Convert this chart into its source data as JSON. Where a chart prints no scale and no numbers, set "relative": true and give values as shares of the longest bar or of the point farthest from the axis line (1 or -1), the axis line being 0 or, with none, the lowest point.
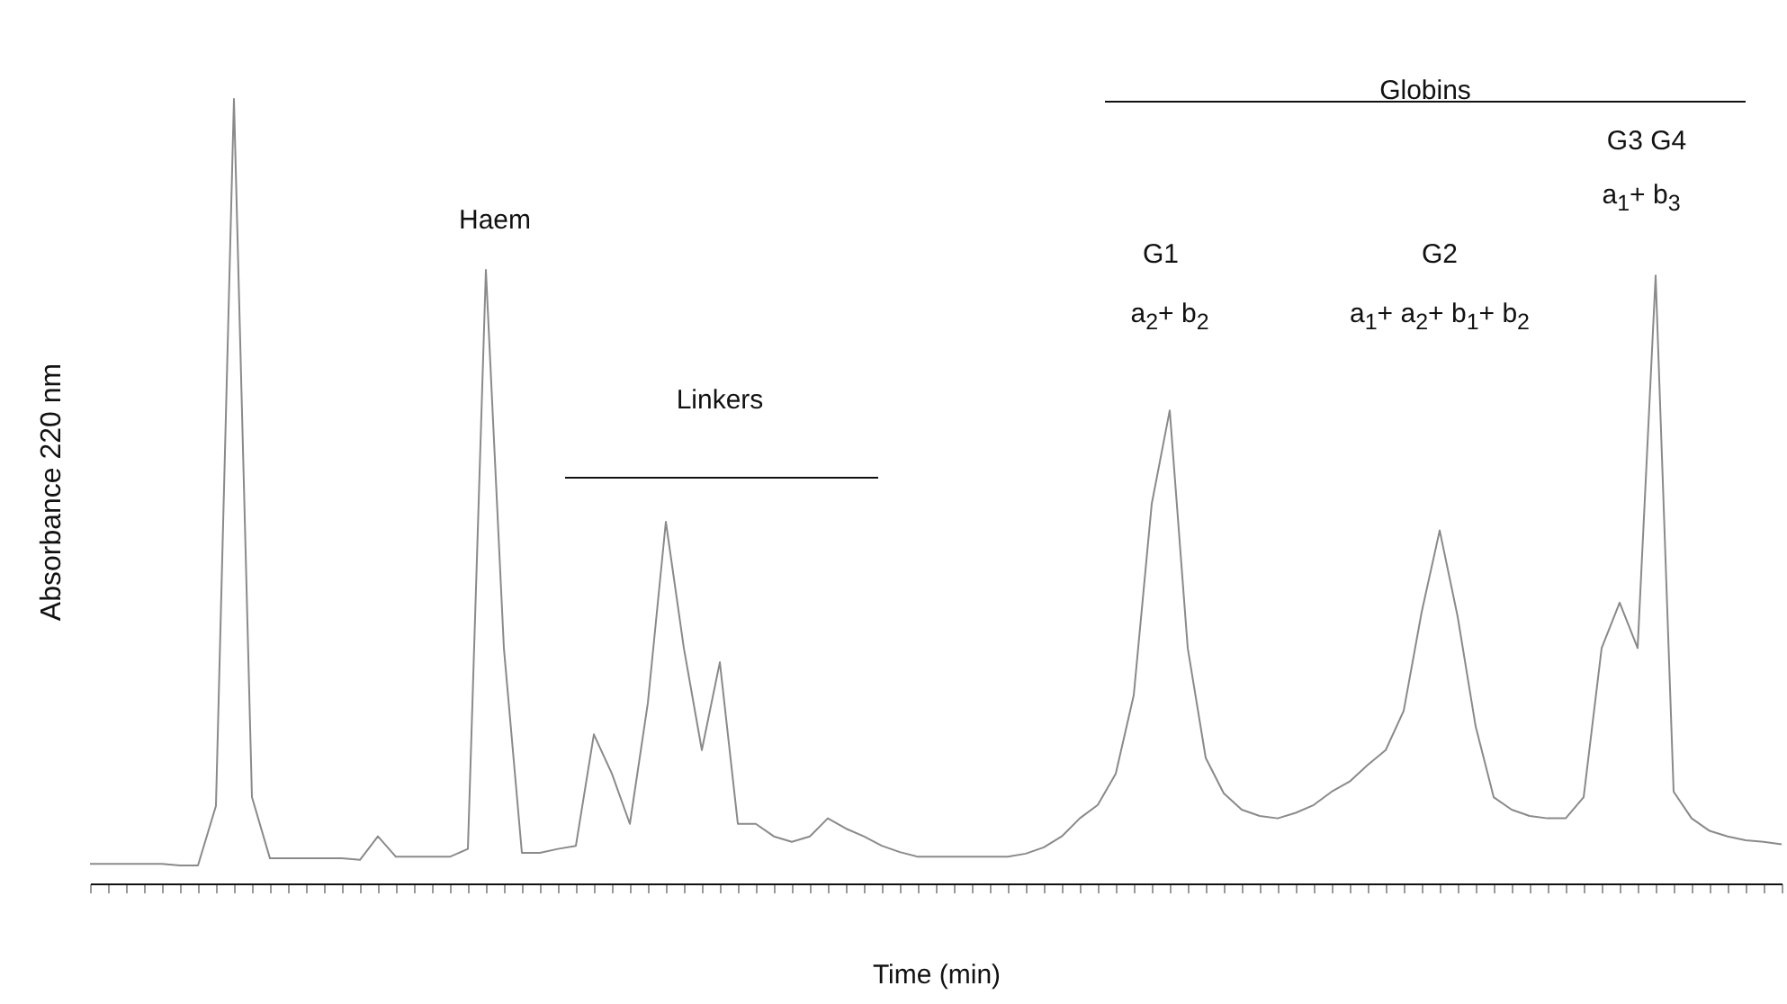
{
  "chart_data": {
    "type": "line",
    "relative": true,
    "xlabel": "Time (min)",
    "ylabel": "Absorbance 220 nm",
    "annotations": [
      "Haem",
      "Linkers",
      "Globins",
      "G1",
      "a$_{2}$+ b$_{2}$",
      "G2",
      "a$_{1}$+ a$_{2}$+ b$_{1}$+ b$_{2}$",
      "G3 G4",
      "a$_{1}$+ b$_{3}$"
    ],
    "categories": [
      null,
      null,
      null,
      null,
      null,
      null,
      null,
      null,
      null,
      null,
      null,
      null,
      null,
      null,
      null,
      null,
      null,
      null,
      null,
      null,
      null,
      null,
      null,
      null,
      null,
      null,
      null,
      null,
      null,
      null,
      null,
      null,
      null,
      null,
      null,
      null,
      null,
      null,
      null,
      null,
      null,
      null,
      null,
      null,
      null,
      null,
      null,
      null,
      null,
      null,
      null,
      null,
      null,
      null,
      null,
      null,
      null,
      null,
      null,
      null,
      null,
      null,
      null,
      null,
      null,
      null,
      null,
      null,
      null,
      null,
      null,
      null,
      null,
      null,
      null,
      null,
      null,
      null,
      null,
      null,
      null,
      null,
      null,
      null,
      null,
      null,
      null,
      null,
      null,
      null,
      null,
      null,
      null,
      null,
      null
    ],
    "series": [
      {
        "color": "#8a8a8a",
        "values": [
          0.025,
          0.025,
          0.025,
          0.025,
          0.025,
          0.023,
          0.023,
          0.099,
          1.0,
          0.11,
          0.032,
          0.032,
          0.032,
          0.032,
          0.032,
          0.03,
          0.06,
          0.034,
          0.034,
          0.034,
          0.034,
          0.044,
          0.782,
          0.3,
          0.039,
          0.039,
          0.044,
          0.048,
          0.19,
          0.14,
          0.076,
          0.23,
          0.461,
          0.3,
          0.17,
          0.282,
          0.076,
          0.076,
          0.06,
          0.053,
          0.06,
          0.083,
          0.07,
          0.06,
          0.048,
          0.04,
          0.034,
          0.034,
          0.034,
          0.034,
          0.034,
          0.034,
          0.038,
          0.046,
          0.06,
          0.083,
          0.1,
          0.14,
          0.24,
          0.484,
          0.603,
          0.3,
          0.16,
          0.115,
          0.094,
          0.086,
          0.083,
          0.09,
          0.1,
          0.117,
          0.13,
          0.151,
          0.17,
          0.22,
          0.346,
          0.45,
          0.34,
          0.2,
          0.11,
          0.094,
          0.086,
          0.083,
          0.083,
          0.11,
          0.3,
          0.358,
          0.3,
          0.775,
          0.117,
          0.083,
          0.067,
          0.06,
          0.055,
          0.053,
          0.05
        ]
      }
    ],
    "grid": false,
    "marker": "none",
    "line_style": "solid"
  }
}
